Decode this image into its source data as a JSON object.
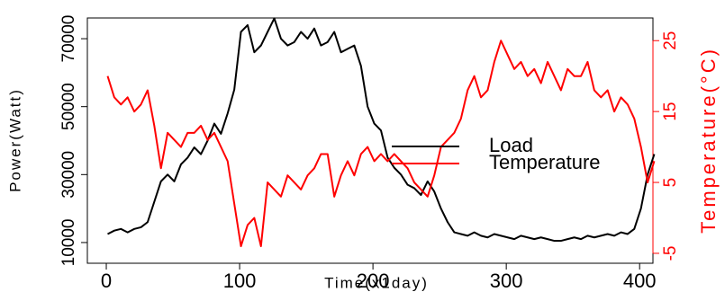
{
  "chart_data": {
    "type": "line",
    "x_label": "Time(x1day)",
    "y_label": "Power(Watt)",
    "y2_label": "Temperature(°C)",
    "x": [
      1,
      6,
      11,
      16,
      21,
      26,
      31,
      36,
      41,
      46,
      51,
      56,
      61,
      66,
      71,
      76,
      81,
      86,
      91,
      96,
      101,
      106,
      111,
      116,
      121,
      126,
      131,
      136,
      141,
      146,
      151,
      156,
      161,
      166,
      171,
      176,
      181,
      186,
      191,
      196,
      201,
      206,
      211,
      216,
      221,
      226,
      231,
      236,
      241,
      246,
      251,
      256,
      261,
      266,
      271,
      276,
      281,
      286,
      291,
      296,
      301,
      306,
      311,
      316,
      321,
      326,
      331,
      336,
      341,
      346,
      351,
      356,
      361,
      366,
      371,
      376,
      381,
      386,
      391,
      396,
      401,
      406,
      411
    ],
    "series": [
      {
        "name": "Load",
        "color": "#000000",
        "values": [
          12500,
          13500,
          14000,
          13000,
          14000,
          14500,
          16000,
          22000,
          28000,
          30000,
          28000,
          33000,
          35000,
          38000,
          36000,
          40000,
          45000,
          42000,
          48000,
          55000,
          72000,
          74000,
          66000,
          68000,
          72000,
          76000,
          70000,
          68000,
          69000,
          72000,
          70000,
          73000,
          68000,
          69000,
          72000,
          66000,
          67000,
          68000,
          62000,
          50000,
          45000,
          43000,
          35000,
          32000,
          30000,
          27000,
          26000,
          24000,
          28000,
          25000,
          20000,
          16000,
          13000,
          12500,
          12000,
          13000,
          12000,
          11500,
          12500,
          12000,
          11500,
          11000,
          12000,
          11500,
          11000,
          11500,
          11000,
          10500,
          10500,
          11000,
          11500,
          11000,
          12000,
          11500,
          12000,
          12500,
          12000,
          13000,
          12500,
          14000,
          20000,
          30000,
          36000
        ]
      },
      {
        "name": "Temperature",
        "color": "#ff0000",
        "axis": "y2",
        "values": [
          20,
          17,
          16,
          17,
          15,
          16,
          18,
          13,
          7,
          12,
          11,
          10,
          12,
          12,
          13,
          11,
          12,
          10,
          8,
          2,
          -4,
          -1,
          0,
          -4,
          5,
          4,
          3,
          6,
          5,
          4,
          6,
          7,
          9,
          9,
          3,
          6,
          8,
          6,
          9,
          10,
          8,
          9,
          8,
          9,
          8,
          7,
          5,
          4,
          3,
          6,
          10,
          11,
          12,
          14,
          18,
          20,
          17,
          18,
          22,
          25,
          23,
          21,
          22,
          20,
          21,
          19,
          22,
          20,
          18,
          21,
          20,
          20,
          22,
          18,
          17,
          18,
          15,
          17,
          16,
          14,
          10,
          5,
          8
        ]
      }
    ],
    "xlim": [
      -14.2,
      410
    ],
    "xticks": [
      0,
      100,
      200,
      300,
      400
    ],
    "ylim": [
      3900,
      76100
    ],
    "yticks": [
      10000,
      30000,
      50000,
      70000
    ],
    "y2lim": [
      -6.4,
      28.2
    ],
    "y2ticks": [
      -5,
      5,
      15,
      25
    ],
    "legend": "center-right"
  }
}
